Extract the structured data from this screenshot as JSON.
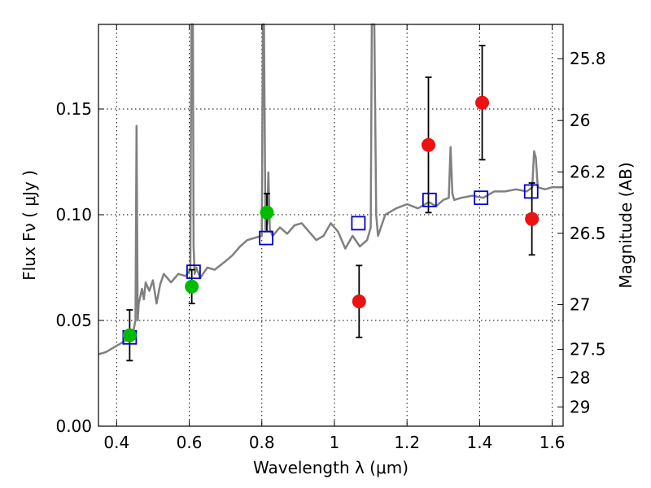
{
  "chart_data": {
    "type": "scatter",
    "title": "",
    "xlabel": "Wavelength  λ (μm)",
    "ylabel": "Flux  Fν  ( μJy )",
    "ylabel_right": "Magnitude (AB)",
    "xlim": [
      0.35,
      1.63
    ],
    "ylim": [
      0.0,
      0.19
    ],
    "grid": true,
    "x_ticks": [
      {
        "value": 0.4,
        "label": "0.4"
      },
      {
        "value": 0.6,
        "label": "0.6"
      },
      {
        "value": 0.8,
        "label": "0.8"
      },
      {
        "value": 1.0,
        "label": "1"
      },
      {
        "value": 1.2,
        "label": "1.2"
      },
      {
        "value": 1.4,
        "label": "1.4"
      },
      {
        "value": 1.6,
        "label": "1.6"
      }
    ],
    "y_ticks": [
      {
        "value": 0.0,
        "label": "0.00"
      },
      {
        "value": 0.05,
        "label": "0.05"
      },
      {
        "value": 0.1,
        "label": "0.10"
      },
      {
        "value": 0.15,
        "label": "0.15"
      }
    ],
    "magnitude_ticks": [
      {
        "value": 25.8,
        "label": "25.8"
      },
      {
        "value": 26.0,
        "label": "26"
      },
      {
        "value": 26.2,
        "label": "26.2"
      },
      {
        "value": 26.5,
        "label": "26.5"
      },
      {
        "value": 27.0,
        "label": "27"
      },
      {
        "value": 27.5,
        "label": "27.5"
      },
      {
        "value": 28.0,
        "label": "28"
      },
      {
        "value": 29.0,
        "label": "29"
      }
    ],
    "colors": {
      "spectrum": "#808080",
      "model_squares": "#0000cc",
      "optical_points": "#00bb00",
      "nir_points": "#ee1111",
      "errorbars": "#000000"
    },
    "spectrum": {
      "x": [
        0.35,
        0.37,
        0.39,
        0.41,
        0.43,
        0.445,
        0.452,
        0.455,
        0.458,
        0.461,
        0.47,
        0.475,
        0.48,
        0.49,
        0.5,
        0.51,
        0.52,
        0.53,
        0.55,
        0.57,
        0.59,
        0.603,
        0.606,
        0.608,
        0.61,
        0.612,
        0.615,
        0.62,
        0.63,
        0.65,
        0.67,
        0.7,
        0.72,
        0.74,
        0.76,
        0.78,
        0.8,
        0.803,
        0.806,
        0.81,
        0.815,
        0.818,
        0.822,
        0.83,
        0.85,
        0.87,
        0.89,
        0.91,
        0.93,
        0.95,
        0.97,
        0.99,
        1.01,
        1.03,
        1.05,
        1.07,
        1.09,
        1.1,
        1.103,
        1.106,
        1.11,
        1.115,
        1.12,
        1.14,
        1.17,
        1.2,
        1.23,
        1.26,
        1.28,
        1.3,
        1.315,
        1.32,
        1.325,
        1.33,
        1.35,
        1.38,
        1.41,
        1.44,
        1.47,
        1.5,
        1.53,
        1.545,
        1.55,
        1.555,
        1.56,
        1.58,
        1.6,
        1.63
      ],
      "y": [
        0.034,
        0.035,
        0.037,
        0.039,
        0.041,
        0.044,
        0.05,
        0.142,
        0.05,
        0.058,
        0.065,
        0.06,
        0.068,
        0.064,
        0.069,
        0.058,
        0.067,
        0.072,
        0.068,
        0.072,
        0.071,
        0.074,
        0.19,
        0.19,
        0.19,
        0.085,
        0.072,
        0.075,
        0.07,
        0.075,
        0.074,
        0.078,
        0.081,
        0.085,
        0.088,
        0.089,
        0.09,
        0.19,
        0.19,
        0.093,
        0.096,
        0.12,
        0.093,
        0.09,
        0.094,
        0.091,
        0.095,
        0.096,
        0.092,
        0.088,
        0.09,
        0.096,
        0.092,
        0.084,
        0.09,
        0.085,
        0.088,
        0.094,
        0.19,
        0.19,
        0.19,
        0.1,
        0.09,
        0.1,
        0.103,
        0.105,
        0.103,
        0.106,
        0.104,
        0.107,
        0.108,
        0.132,
        0.11,
        0.107,
        0.108,
        0.109,
        0.108,
        0.111,
        0.111,
        0.112,
        0.111,
        0.113,
        0.13,
        0.127,
        0.113,
        0.112,
        0.113,
        0.113
      ]
    },
    "series": [
      {
        "marker": "open-square",
        "x": [
          0.436,
          0.612,
          0.812,
          1.066,
          1.262,
          1.404,
          1.542
        ],
        "y": [
          0.042,
          0.073,
          0.089,
          0.096,
          0.107,
          0.108,
          0.111
        ]
      },
      {
        "marker": "filled-circle",
        "color": "green",
        "x": [
          0.436,
          0.607,
          0.814
        ],
        "y": [
          0.043,
          0.066,
          0.101
        ],
        "yerr": [
          0.012,
          0.008,
          0.009
        ]
      },
      {
        "marker": "filled-circle",
        "color": "red",
        "x": [
          1.068,
          1.259,
          1.407,
          1.544
        ],
        "y": [
          0.059,
          0.133,
          0.153,
          0.098
        ],
        "yerr": [
          0.017,
          0.032,
          0.027,
          0.017
        ]
      }
    ]
  }
}
